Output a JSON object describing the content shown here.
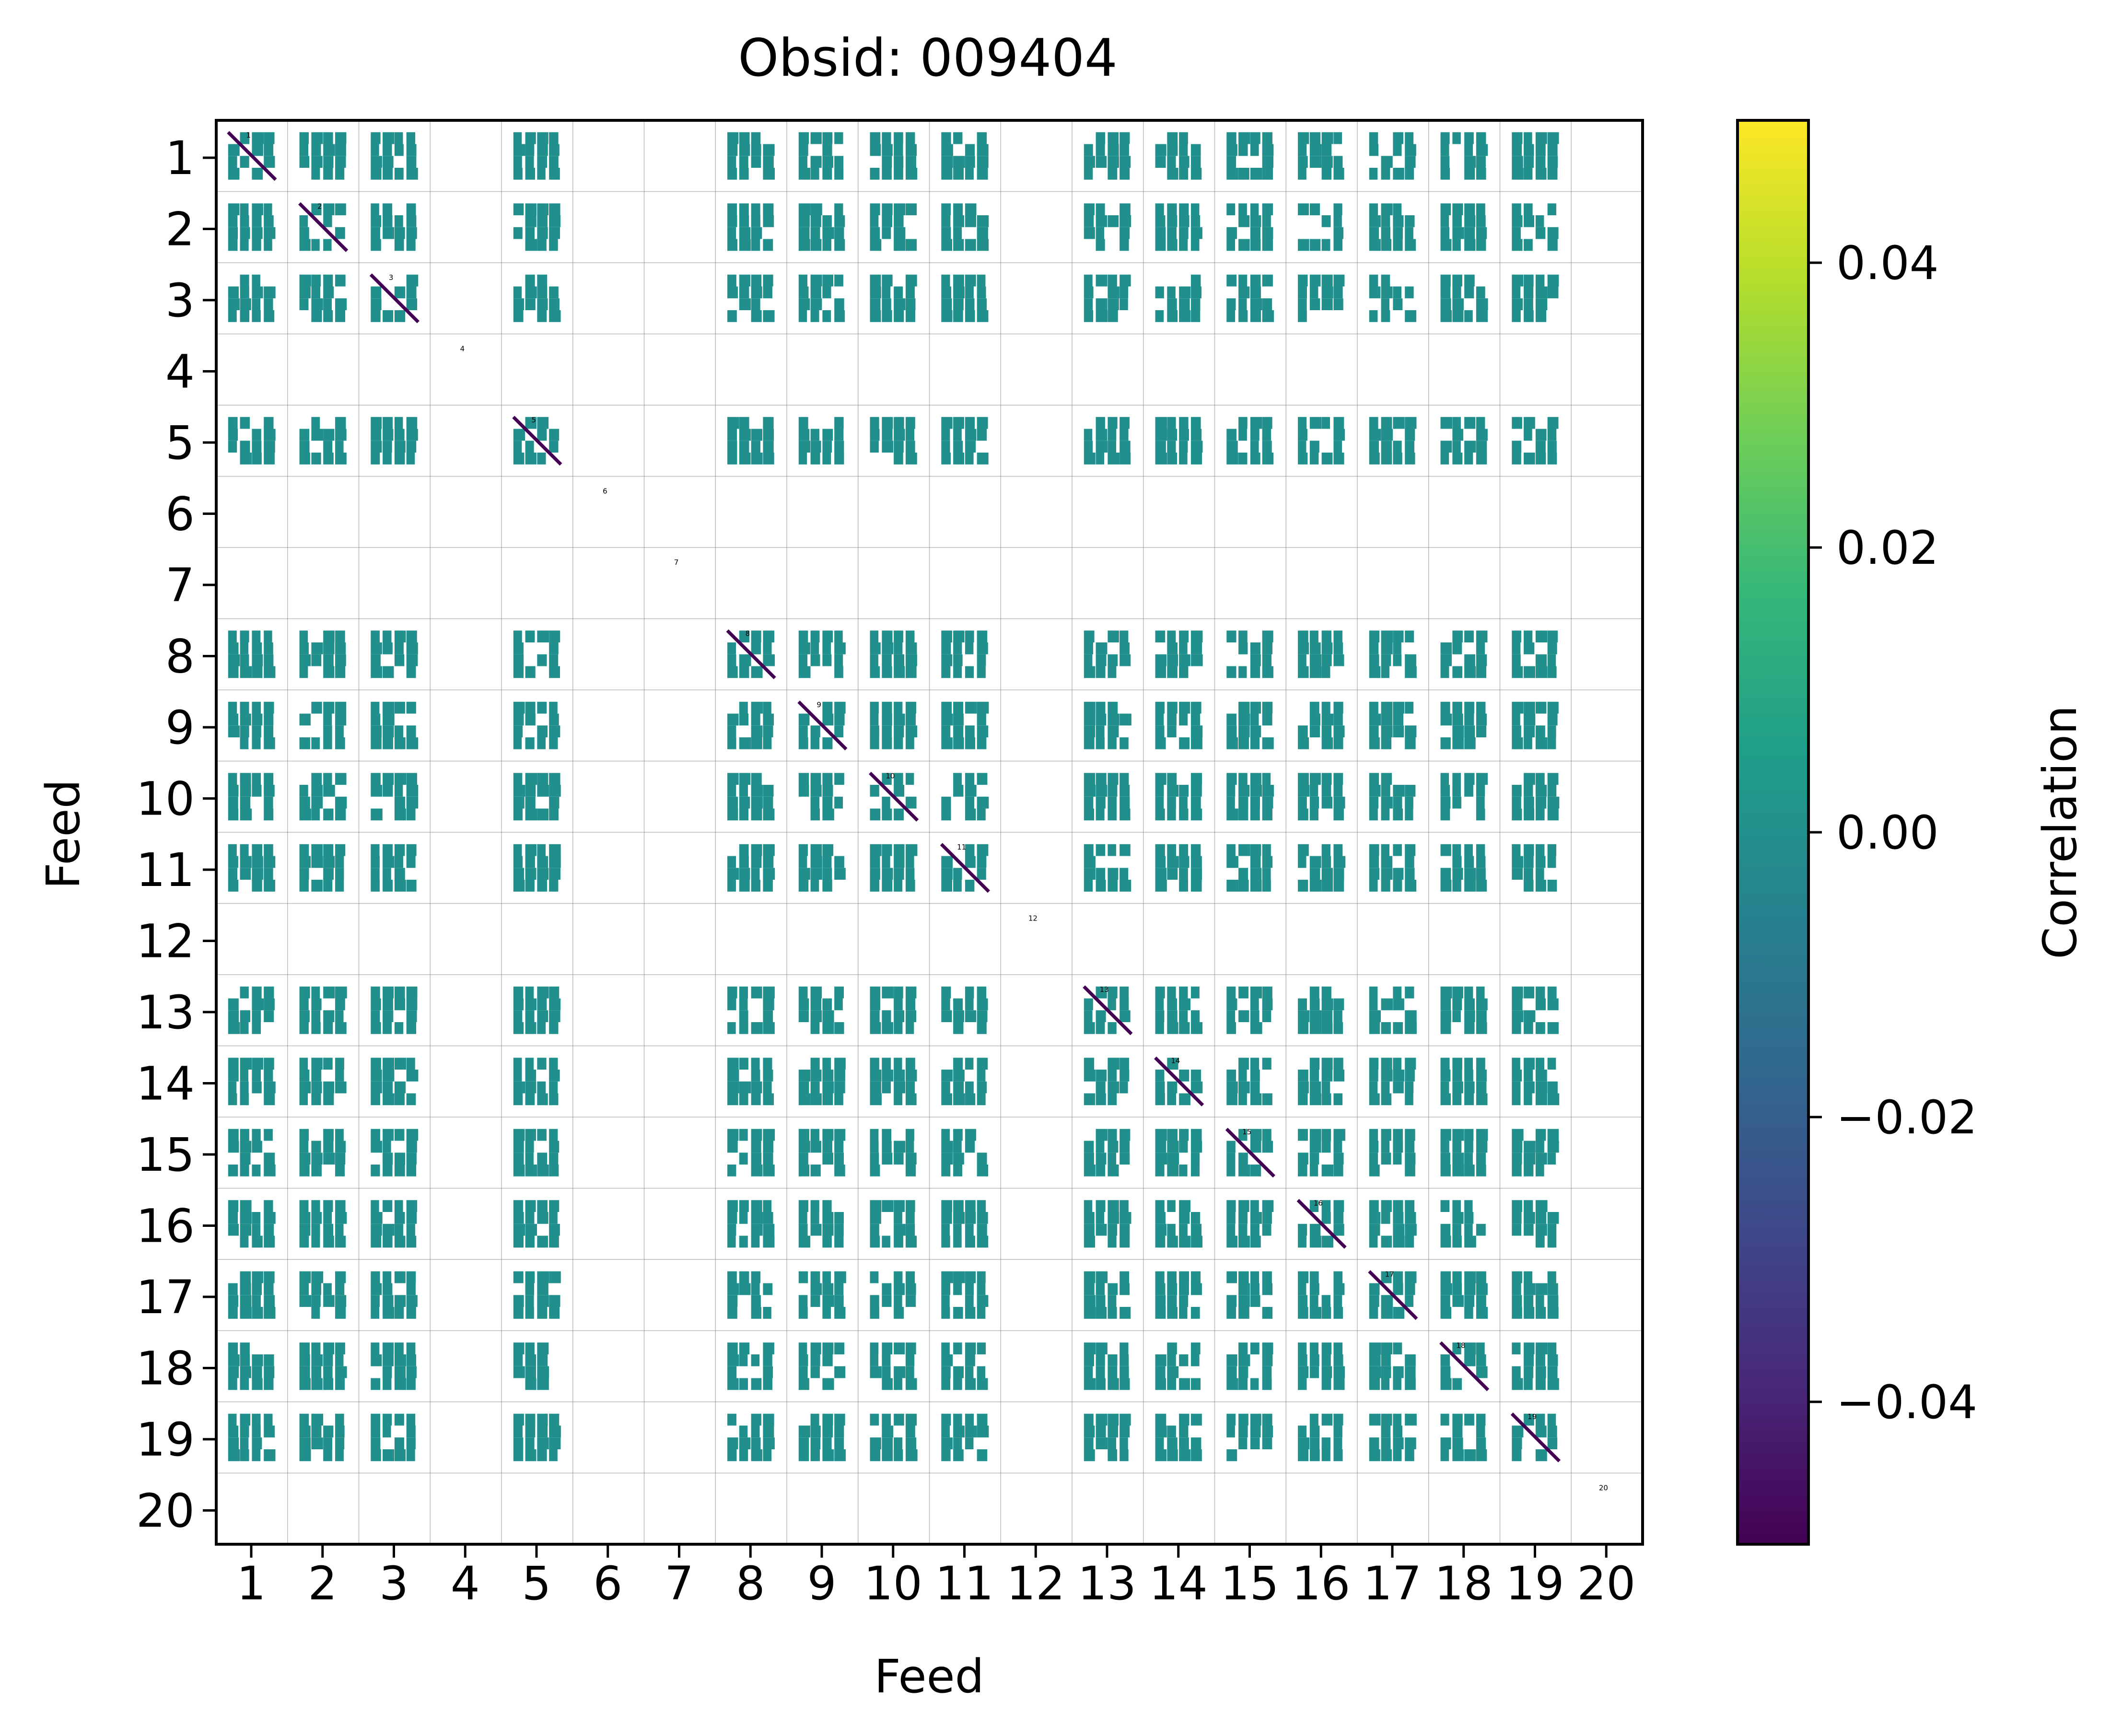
{
  "chart_data": {
    "type": "heatmap",
    "title": "Obsid: 009404",
    "xlabel": "Feed",
    "ylabel": "Feed",
    "x_ticks": [
      "1",
      "2",
      "3",
      "4",
      "5",
      "6",
      "7",
      "8",
      "9",
      "10",
      "11",
      "12",
      "13",
      "14",
      "15",
      "16",
      "17",
      "18",
      "19",
      "20"
    ],
    "y_ticks": [
      "1",
      "2",
      "3",
      "4",
      "5",
      "6",
      "7",
      "8",
      "9",
      "10",
      "11",
      "12",
      "13",
      "14",
      "15",
      "16",
      "17",
      "18",
      "19",
      "20"
    ],
    "colorbar": {
      "label": "Correlation",
      "vmin": -0.05,
      "vmax": 0.05,
      "ticks": [
        {
          "value": 0.04,
          "label": "0.04"
        },
        {
          "value": 0.02,
          "label": "0.02"
        },
        {
          "value": 0.0,
          "label": "0.00"
        },
        {
          "value": -0.02,
          "label": "−0.02"
        },
        {
          "value": -0.04,
          "label": "−0.04"
        }
      ],
      "colormap": [
        "#440154",
        "#482878",
        "#3e4989",
        "#31688e",
        "#26828e",
        "#1f9e89",
        "#35b779",
        "#6ece58",
        "#b5de2b",
        "#fde725"
      ]
    },
    "cell_value": 0.0,
    "cell_color": "#21908d",
    "diagonal_color": "#440154",
    "active_feeds": [
      1,
      2,
      3,
      5,
      8,
      9,
      10,
      11,
      13,
      14,
      15,
      16,
      17,
      18,
      19
    ],
    "feed_labels": [
      "1",
      "2",
      "3",
      "4",
      "5",
      "6",
      "7",
      "8",
      "9",
      "10",
      "11",
      "12",
      "13",
      "14",
      "15",
      "16",
      "17",
      "18",
      "19",
      "20"
    ]
  }
}
